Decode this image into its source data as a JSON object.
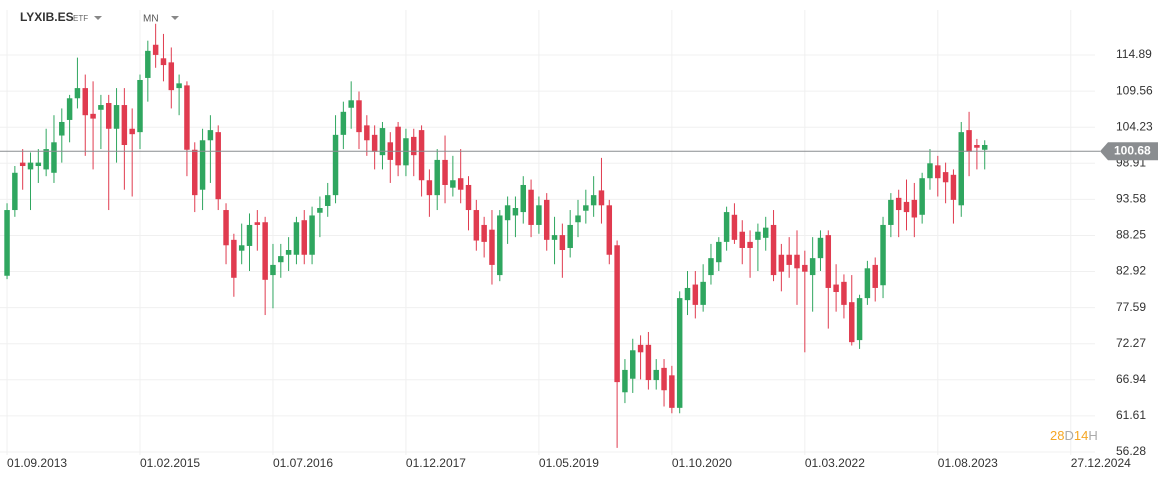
{
  "chart_data": {
    "type": "candlestick",
    "symbol": "LYXIB.ES",
    "instrument_type": "ETF",
    "interval": "MN",
    "current_price": 100.68,
    "current_price_label": "100.68",
    "up_color": "#2fa65f",
    "down_color": "#e03b4f",
    "price_line_color": "#8a8d90",
    "grid": true,
    "countdown": [
      {
        "text": "28",
        "color": "#f5a623"
      },
      {
        "text": "D",
        "color": "#aaaaaa"
      },
      {
        "text": "14",
        "color": "#f5a623"
      },
      {
        "text": "H",
        "color": "#aaaaaa"
      }
    ],
    "ylim": [
      55.84,
      121.53
    ],
    "yticks": [
      {
        "value": 56.28,
        "label": "56.28"
      },
      {
        "value": 61.61,
        "label": "61.61"
      },
      {
        "value": 66.94,
        "label": "66.94"
      },
      {
        "value": 72.27,
        "label": "72.27"
      },
      {
        "value": 77.59,
        "label": "77.59"
      },
      {
        "value": 82.92,
        "label": "82.92"
      },
      {
        "value": 88.25,
        "label": "88.25"
      },
      {
        "value": 93.58,
        "label": "93.58"
      },
      {
        "value": 98.91,
        "label": "98.91"
      },
      {
        "value": 104.23,
        "label": "104.23"
      },
      {
        "value": 109.56,
        "label": "109.56"
      },
      {
        "value": 114.89,
        "label": "114.89"
      }
    ],
    "xlim": [
      -0.9,
      139.1
    ],
    "xticks": [
      {
        "value": 0,
        "label": "01.09.2013"
      },
      {
        "value": 17,
        "label": "01.02.2015"
      },
      {
        "value": 34,
        "label": "01.07.2016"
      },
      {
        "value": 51,
        "label": "01.12.2017"
      },
      {
        "value": 68,
        "label": "01.05.2019"
      },
      {
        "value": 85,
        "label": "01.10.2020"
      },
      {
        "value": 102,
        "label": "01.03.2022"
      },
      {
        "value": 119,
        "label": "01.08.2023"
      },
      {
        "value": 136,
        "label": "27.12.2024"
      }
    ],
    "ohlc": [
      [
        82.3,
        93,
        81.8,
        92
      ],
      [
        92,
        98.5,
        91,
        97.5
      ],
      [
        99,
        101,
        95,
        98.5
      ],
      [
        98,
        100.5,
        92,
        99
      ],
      [
        98.5,
        101,
        96,
        99
      ],
      [
        98,
        104,
        97,
        101
      ],
      [
        97.5,
        106,
        96,
        102
      ],
      [
        103,
        107,
        99,
        105
      ],
      [
        105.3,
        109,
        102,
        108.5
      ],
      [
        108.5,
        114.5,
        107,
        110
      ],
      [
        110,
        112,
        100,
        106
      ],
      [
        106.2,
        111,
        98,
        105.5
      ],
      [
        106.8,
        109,
        101,
        107.5
      ],
      [
        107.8,
        109,
        92,
        104
      ],
      [
        104,
        110,
        99,
        107.5
      ],
      [
        107.5,
        110,
        95,
        101.6
      ],
      [
        104,
        107,
        94,
        103.2
      ],
      [
        103.5,
        112,
        101,
        111.2
      ],
      [
        111.5,
        117,
        108,
        115.5
      ],
      [
        116.4,
        119.5,
        113,
        114.9
      ],
      [
        114.4,
        118,
        111,
        113.4
      ],
      [
        113.8,
        116,
        107,
        109.7
      ],
      [
        110,
        112,
        106,
        110.7
      ],
      [
        110.4,
        111,
        97,
        100.9
      ],
      [
        100.9,
        102,
        91.7,
        94.2
      ],
      [
        95,
        104,
        92,
        102.3
      ],
      [
        102.3,
        106,
        96,
        103.8
      ],
      [
        103.5,
        104.5,
        92,
        93.6
      ],
      [
        92,
        93,
        84,
        86.8
      ],
      [
        87.6,
        88.5,
        79.2,
        82
      ],
      [
        86,
        90,
        84,
        86.8
      ],
      [
        86.7,
        91.5,
        83,
        89.8
      ],
      [
        90.2,
        92,
        86,
        89.8
      ],
      [
        90.2,
        91,
        76.5,
        81.7
      ],
      [
        82.4,
        87,
        77.5,
        83.9
      ],
      [
        84.3,
        87,
        82,
        85.2
      ],
      [
        85.4,
        88,
        83,
        86.1
      ],
      [
        85.4,
        91,
        84,
        90.2
      ],
      [
        90.5,
        92,
        84,
        85.4
      ],
      [
        85.4,
        92.5,
        84,
        91.2
      ],
      [
        91.6,
        94,
        88,
        92.3
      ],
      [
        92.6,
        96,
        91,
        94.2
      ],
      [
        94.2,
        106,
        93,
        103.1
      ],
      [
        103.1,
        108,
        101,
        106.5
      ],
      [
        107.1,
        111,
        104,
        108.2
      ],
      [
        108.2,
        109.5,
        101,
        103.5
      ],
      [
        104.5,
        106,
        100,
        102.3
      ],
      [
        103.1,
        104.5,
        98,
        100.6
      ],
      [
        100.1,
        105,
        98,
        104.1
      ],
      [
        102,
        103.5,
        96,
        99.4
      ],
      [
        104.3,
        105,
        97,
        98.6
      ],
      [
        98.6,
        104,
        97,
        102.6
      ],
      [
        102.8,
        104,
        97,
        100.1
      ],
      [
        103.8,
        104.5,
        94,
        96.4
      ],
      [
        96.4,
        98,
        91,
        94.2
      ],
      [
        94.2,
        101,
        92,
        99.4
      ],
      [
        99.4,
        103,
        93,
        95.7
      ],
      [
        95.3,
        100,
        94,
        96.4
      ],
      [
        96.7,
        101,
        93,
        95
      ],
      [
        95.7,
        97,
        89,
        92
      ],
      [
        92,
        93.5,
        86,
        87.5
      ],
      [
        89.8,
        91,
        85,
        87.3
      ],
      [
        89.1,
        92,
        81,
        83.9
      ],
      [
        82.4,
        92,
        81.5,
        91.2
      ],
      [
        90.5,
        94,
        87,
        92.7
      ],
      [
        91.2,
        94,
        88,
        92.3
      ],
      [
        91.7,
        97,
        90,
        95.7
      ],
      [
        95,
        96.5,
        88,
        89.8
      ],
      [
        89.8,
        94,
        88.5,
        92.7
      ],
      [
        93.5,
        94.5,
        86,
        87.6
      ],
      [
        87.6,
        91,
        84,
        88.3
      ],
      [
        88.3,
        90,
        82,
        86.1
      ],
      [
        86.4,
        92,
        85,
        89.8
      ],
      [
        90.2,
        93.5,
        88,
        91.2
      ],
      [
        91.9,
        95,
        90,
        92.7
      ],
      [
        92.7,
        97,
        91,
        94.2
      ],
      [
        94.9,
        99.7,
        90,
        92.7
      ],
      [
        92.7,
        93.5,
        84,
        85.4
      ],
      [
        86.8,
        87.5,
        56.9,
        66.6
      ],
      [
        65.1,
        70,
        63.5,
        68.4
      ],
      [
        67.1,
        73,
        65,
        71.3
      ],
      [
        72.1,
        73.5,
        67,
        71
      ],
      [
        72.1,
        74,
        65.5,
        66.9
      ],
      [
        66.9,
        70,
        65.5,
        68.4
      ],
      [
        68.7,
        70,
        63,
        65.4
      ],
      [
        67.6,
        69,
        62,
        62.8
      ],
      [
        62.8,
        80,
        62,
        79
      ],
      [
        78.7,
        83,
        76.5,
        80.5
      ],
      [
        81,
        83,
        76,
        78
      ],
      [
        78,
        84,
        77,
        81.4
      ],
      [
        82.4,
        87,
        81,
        84.9
      ],
      [
        84.3,
        88,
        83,
        87.3
      ],
      [
        87.3,
        92.5,
        86,
        91.7
      ],
      [
        91.3,
        93,
        87,
        87.6
      ],
      [
        88.8,
        90.5,
        84,
        86.4
      ],
      [
        87.3,
        89,
        82,
        86.4
      ],
      [
        87.6,
        90,
        83,
        88.8
      ],
      [
        87.9,
        91,
        86,
        89.4
      ],
      [
        89.8,
        92,
        81.5,
        82.4
      ],
      [
        85.4,
        87,
        80,
        82.9
      ],
      [
        85.4,
        88,
        82,
        83.9
      ],
      [
        85.4,
        89,
        78,
        83.4
      ],
      [
        83.9,
        86,
        71,
        82.9
      ],
      [
        82.4,
        88,
        77,
        84.9
      ],
      [
        84.9,
        89,
        83,
        87.9
      ],
      [
        88.3,
        89,
        74.5,
        80.5
      ],
      [
        81,
        84,
        77,
        79.9
      ],
      [
        81.4,
        82.5,
        76,
        78
      ],
      [
        78.4,
        82.4,
        72,
        72.5
      ],
      [
        72.8,
        79.5,
        71.5,
        79
      ],
      [
        79,
        84.5,
        78,
        83.4
      ],
      [
        83.9,
        85,
        78.5,
        80.5
      ],
      [
        80.9,
        91,
        79,
        89.8
      ],
      [
        89.8,
        94.5,
        88,
        93.5
      ],
      [
        93.8,
        95,
        88,
        92
      ],
      [
        93.2,
        96.5,
        89,
        91.7
      ],
      [
        93.5,
        96,
        88,
        90.9
      ],
      [
        91.3,
        97.5,
        90,
        96.7
      ],
      [
        96.7,
        101,
        95,
        98.9
      ],
      [
        98.6,
        100,
        94,
        96.7
      ],
      [
        97.6,
        99,
        93,
        96.1
      ],
      [
        97.2,
        98,
        90,
        93.5
      ],
      [
        92.7,
        105,
        91,
        103.5
      ],
      [
        103.8,
        106.5,
        97,
        100.6
      ],
      [
        101.6,
        102.5,
        98,
        101.2
      ],
      [
        100.9,
        102.3,
        98,
        101.6
      ]
    ]
  }
}
